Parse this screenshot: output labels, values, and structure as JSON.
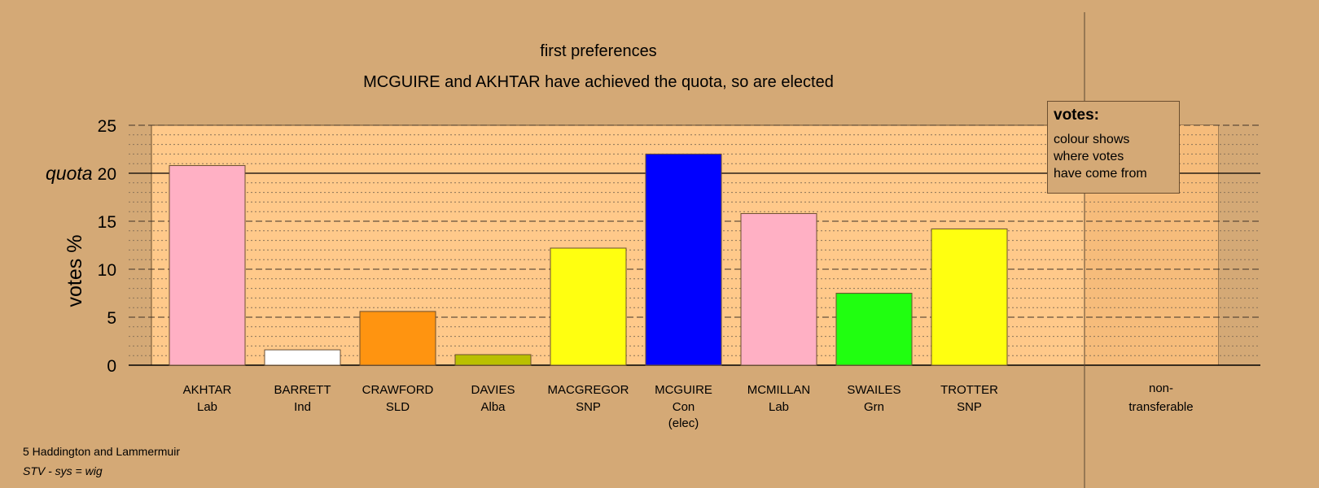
{
  "chart_data": {
    "type": "bar",
    "title": "first preferences",
    "subtitle": "MCGUIRE and AKHTAR have achieved the quota, so are elected",
    "ylabel": "votes %",
    "ylim": [
      0,
      25
    ],
    "yticks": [
      0,
      5,
      10,
      15,
      20,
      25
    ],
    "quota": {
      "label": "quota",
      "value": 20
    },
    "grid": true,
    "categories": [
      {
        "name": "AKHTAR",
        "party": "Lab",
        "note": ""
      },
      {
        "name": "BARRETT",
        "party": "Ind",
        "note": ""
      },
      {
        "name": "CRAWFORD",
        "party": "SLD",
        "note": ""
      },
      {
        "name": "DAVIES",
        "party": "Alba",
        "note": ""
      },
      {
        "name": "MACGREGOR",
        "party": "SNP",
        "note": ""
      },
      {
        "name": "MCGUIRE",
        "party": "Con",
        "note": "(elec)"
      },
      {
        "name": "MCMILLAN",
        "party": "Lab",
        "note": ""
      },
      {
        "name": "SWAILES",
        "party": "Grn",
        "note": ""
      },
      {
        "name": "TROTTER",
        "party": "SNP",
        "note": ""
      }
    ],
    "values": [
      20.8,
      1.6,
      5.6,
      1.1,
      12.2,
      22.0,
      15.8,
      7.5,
      14.2
    ],
    "colors": [
      "#ffb0c4",
      "#ffffff",
      "#ff9410",
      "#b9c000",
      "#ffff10",
      "#0000ff",
      "#ffb0c4",
      "#20ff10",
      "#ffff10"
    ],
    "non_transferable": {
      "label_1": "non-",
      "label_2": "transferable",
      "value": 0
    },
    "legend": {
      "title": "votes:",
      "text": "colour shows\nwhere votes\nhave come from",
      "placement": "top-right"
    }
  },
  "footer": {
    "line1": "5 Haddington and Lammermuir",
    "line2": "STV - sys = wig"
  }
}
